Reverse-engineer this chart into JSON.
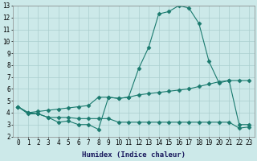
{
  "line1_x": [
    0,
    1,
    2,
    3,
    4,
    5,
    6,
    7,
    8,
    9,
    10,
    11,
    12,
    13,
    14,
    15,
    16,
    17,
    18,
    19,
    20,
    21,
    22,
    23
  ],
  "line1_y": [
    4.5,
    4.0,
    3.9,
    3.6,
    3.2,
    3.3,
    3.0,
    3.0,
    2.6,
    5.3,
    5.2,
    5.3,
    7.7,
    9.5,
    12.3,
    12.5,
    13.0,
    12.8,
    11.5,
    8.3,
    6.5,
    6.7,
    3.0,
    3.0
  ],
  "line2_x": [
    0,
    1,
    2,
    3,
    4,
    5,
    6,
    7,
    8,
    9,
    10,
    11,
    12,
    13,
    14,
    15,
    16,
    17,
    18,
    19,
    20,
    21,
    22,
    23
  ],
  "line2_y": [
    4.5,
    3.9,
    3.9,
    3.6,
    3.6,
    3.6,
    3.5,
    3.5,
    3.5,
    3.5,
    3.2,
    3.2,
    3.2,
    3.2,
    3.2,
    3.2,
    3.2,
    3.2,
    3.2,
    3.2,
    3.2,
    3.2,
    2.7,
    2.8
  ],
  "line3_x": [
    0,
    1,
    2,
    3,
    4,
    5,
    6,
    7,
    8,
    9,
    10,
    11,
    12,
    13,
    14,
    15,
    16,
    17,
    18,
    19,
    20,
    21,
    22,
    23
  ],
  "line3_y": [
    4.5,
    4.0,
    4.1,
    4.2,
    4.3,
    4.4,
    4.5,
    4.6,
    5.3,
    5.3,
    5.2,
    5.3,
    5.5,
    5.6,
    5.7,
    5.8,
    5.9,
    6.0,
    6.2,
    6.4,
    6.6,
    6.7,
    6.7,
    6.7
  ],
  "line_color": "#1a7a6e",
  "marker": "D",
  "marker_size": 2.5,
  "xlabel": "Humidex (Indice chaleur)",
  "xlim": [
    -0.5,
    23.5
  ],
  "ylim": [
    2,
    13
  ],
  "yticks": [
    2,
    3,
    4,
    5,
    6,
    7,
    8,
    9,
    10,
    11,
    12,
    13
  ],
  "xticks": [
    0,
    1,
    2,
    3,
    4,
    5,
    6,
    7,
    8,
    9,
    10,
    11,
    12,
    13,
    14,
    15,
    16,
    17,
    18,
    19,
    20,
    21,
    22,
    23
  ],
  "bg_color": "#cce9e9",
  "grid_color": "#aacece",
  "tick_fontsize": 5.5,
  "xlabel_fontsize": 6.5
}
